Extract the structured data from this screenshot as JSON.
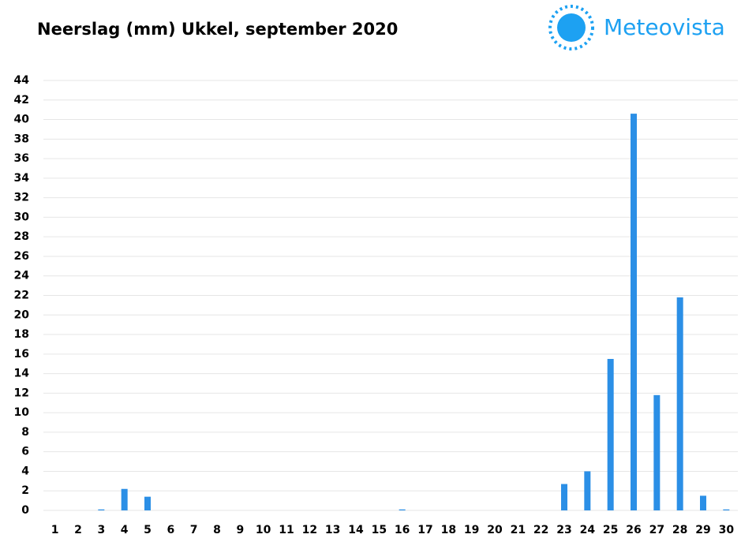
{
  "chart_data": {
    "type": "bar",
    "title": "Neerslag (mm) Ukkel, september 2020",
    "brand": "Meteovista",
    "categories": [
      "1",
      "2",
      "3",
      "4",
      "5",
      "6",
      "7",
      "8",
      "9",
      "10",
      "11",
      "12",
      "13",
      "14",
      "15",
      "16",
      "17",
      "18",
      "19",
      "20",
      "21",
      "22",
      "23",
      "24",
      "25",
      "26",
      "27",
      "28",
      "29",
      "30"
    ],
    "values": [
      0,
      0,
      0.1,
      2.2,
      1.4,
      0,
      0,
      0,
      0,
      0,
      0,
      0,
      0,
      0,
      0,
      0.1,
      0,
      0,
      0,
      0,
      0,
      0,
      2.7,
      4.0,
      15.5,
      40.6,
      11.8,
      21.8,
      1.5,
      0.1
    ],
    "color": "#2b8fe6",
    "ylim": [
      0,
      44
    ],
    "yticks": [
      0,
      2,
      4,
      6,
      8,
      10,
      12,
      14,
      16,
      18,
      20,
      22,
      24,
      26,
      28,
      30,
      32,
      34,
      36,
      38,
      40,
      42,
      44
    ],
    "grid": true
  }
}
